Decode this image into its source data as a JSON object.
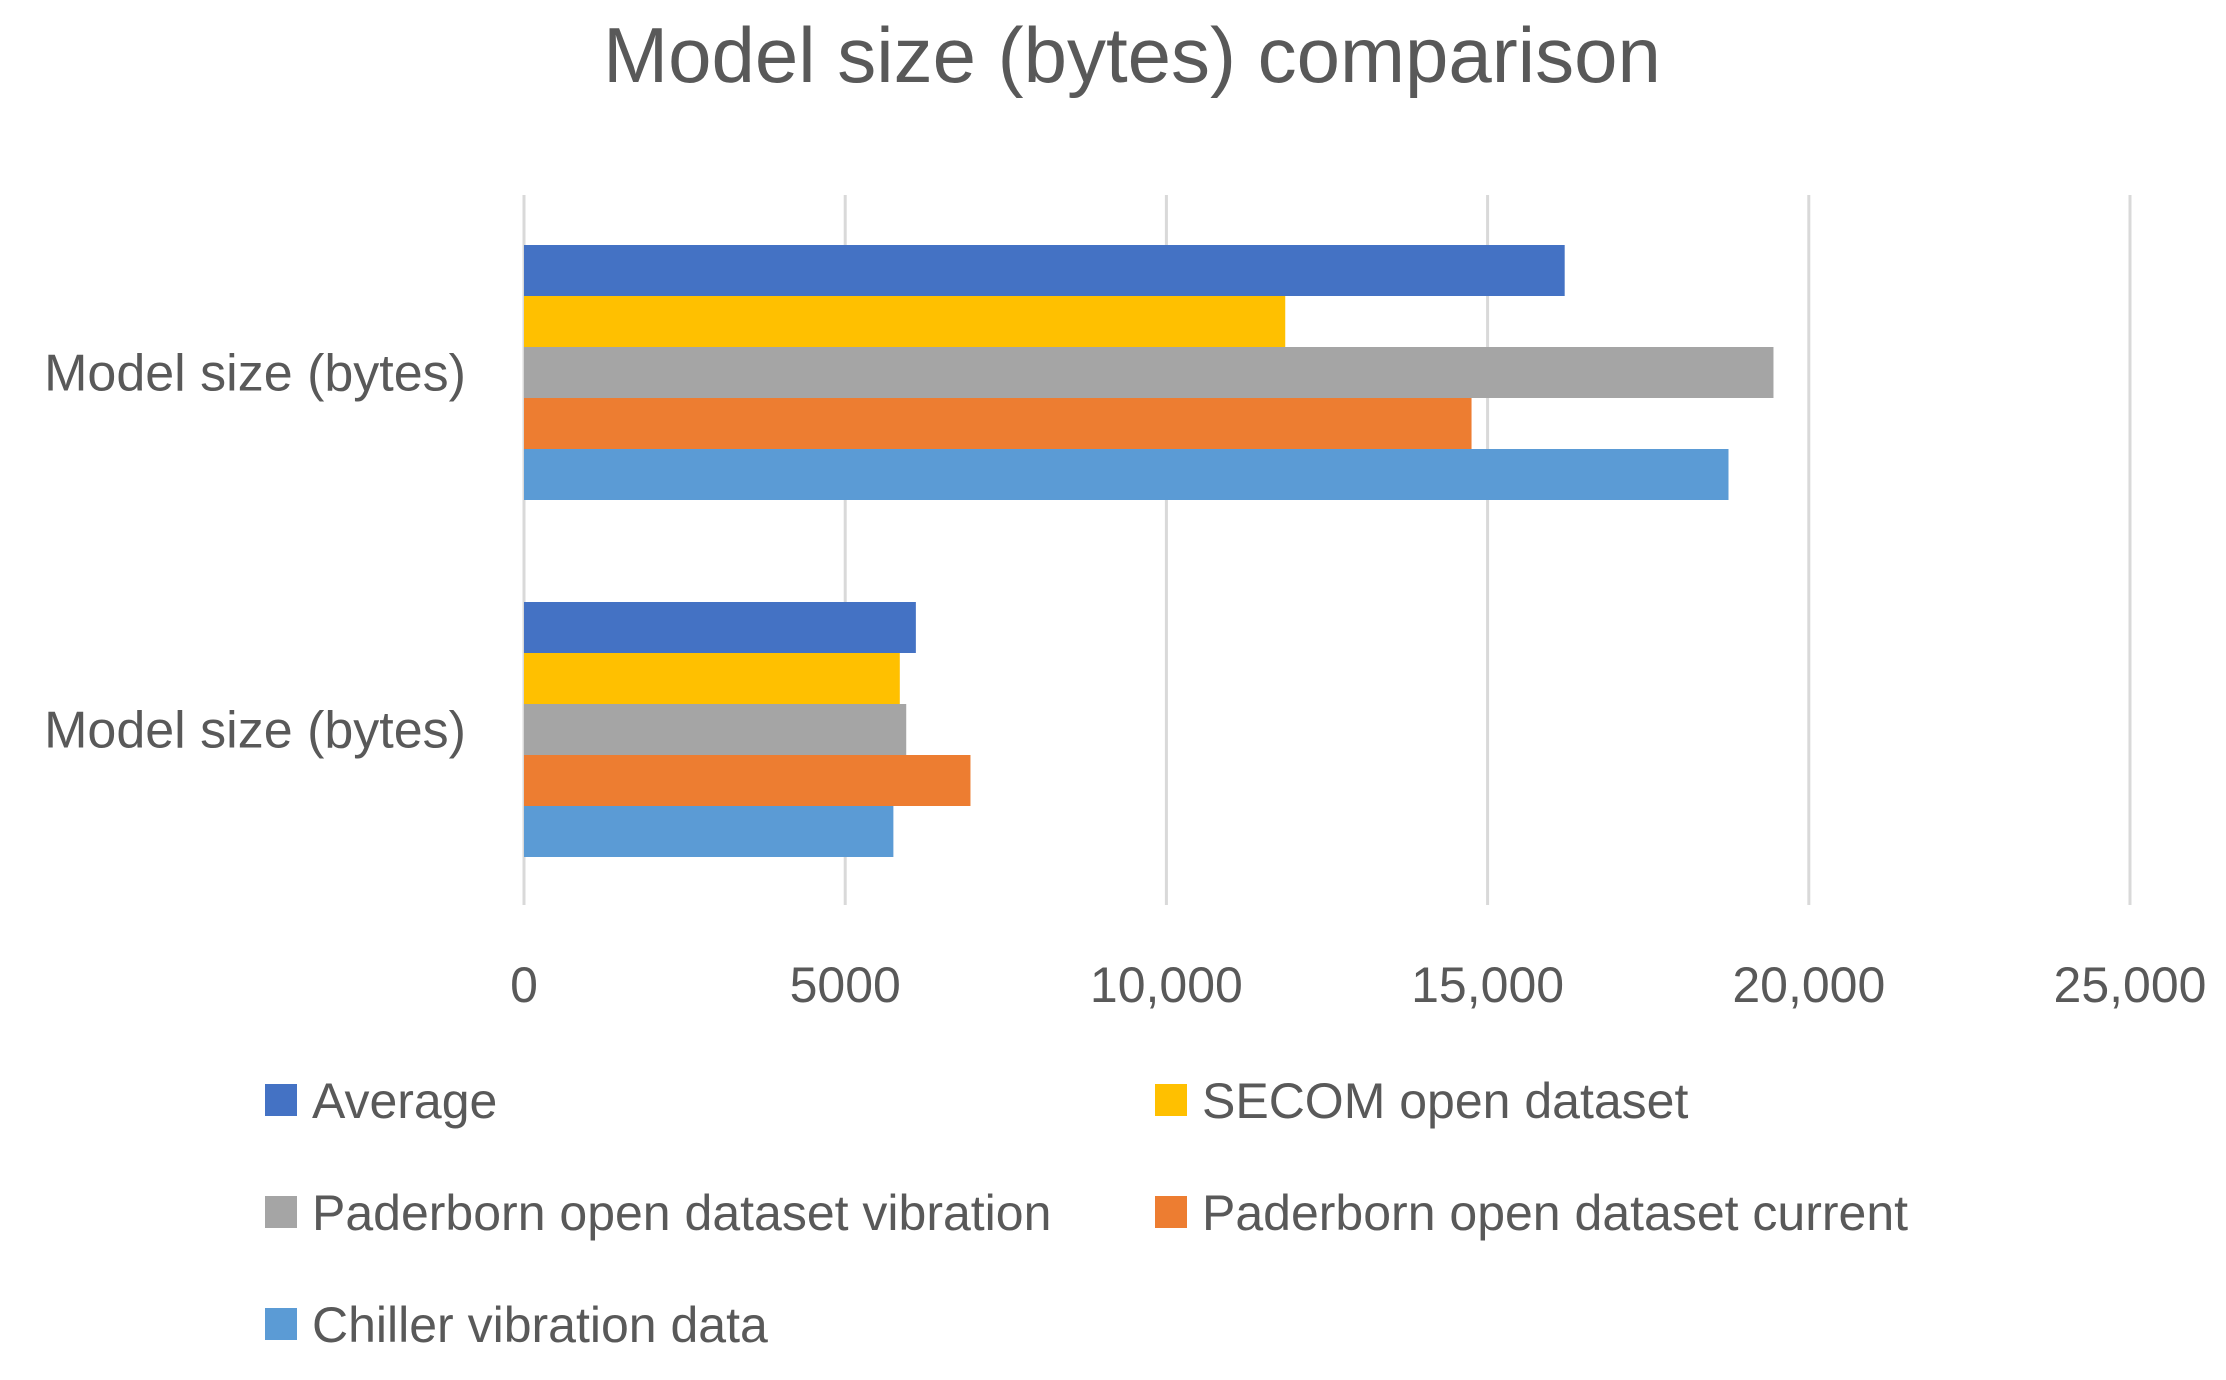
{
  "chart_data": {
    "type": "bar",
    "orientation": "horizontal",
    "title": "Model size (bytes) comparison",
    "xlabel": "",
    "ylabel": "",
    "categories": [
      "Model size (bytes)",
      "Model size (bytes)"
    ],
    "xlim": [
      0,
      25000
    ],
    "x_ticks": [
      0,
      5000,
      10000,
      15000,
      20000,
      25000
    ],
    "x_tick_labels": [
      "0",
      "5000",
      "10,000",
      "15,000",
      "20,000",
      "25,000"
    ],
    "grid": "vertical",
    "legend_position": "bottom",
    "series": [
      {
        "name": "Average",
        "color": "#4472C4",
        "values": [
          16200,
          6100
        ]
      },
      {
        "name": "SECOM open dataset",
        "color": "#FFC000",
        "values": [
          11850,
          5850
        ]
      },
      {
        "name": "Paderborn open dataset vibration",
        "color": "#A5A5A5",
        "values": [
          19450,
          5950
        ]
      },
      {
        "name": "Paderborn open dataset current",
        "color": "#ED7D31",
        "values": [
          14750,
          6950
        ]
      },
      {
        "name": "Chiller vibration data",
        "color": "#5B9BD5",
        "values": [
          18750,
          5750
        ]
      }
    ]
  }
}
